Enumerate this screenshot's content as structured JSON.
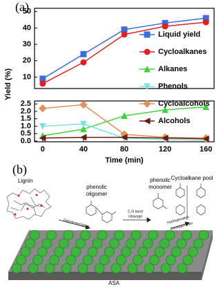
{
  "panel_label": "(a)",
  "chart_data": [
    {
      "type": "line",
      "y_label": "Yield (%)",
      "x": [
        0,
        40,
        80,
        120,
        160
      ],
      "xlim": [
        -8,
        168
      ],
      "ylim": [
        3,
        52
      ],
      "yticks": [
        10,
        20,
        30,
        40,
        50
      ],
      "legend": "right",
      "series": [
        {
          "name": "Liquid yield",
          "color": "#3a6fd8",
          "marker": "square",
          "values": [
            9,
            24,
            39,
            43,
            46
          ]
        },
        {
          "name": "Cycloalkanes",
          "color": "#e02020",
          "marker": "circle",
          "values": [
            6,
            19,
            36,
            41,
            43.5
          ]
        }
      ]
    },
    {
      "type": "line",
      "x_label": "Time (min)",
      "x": [
        0,
        40,
        80,
        120,
        160
      ],
      "xlim": [
        -8,
        168
      ],
      "xticks": [
        0,
        40,
        80,
        120,
        160
      ],
      "ylim": [
        -0.05,
        2.7
      ],
      "yticks": [
        {
          "value": 0,
          "label": "0.0"
        },
        0.5,
        {
          "value": 1,
          "label": "1.0"
        },
        1.5,
        {
          "value": 2,
          "label": "2.0"
        },
        2.5
      ],
      "legend": "right",
      "series": [
        {
          "name": "Alkanes",
          "color": "#40d040",
          "marker": "triangle-up",
          "values": [
            0.35,
            0.8,
            1.7,
            2.1,
            2.3
          ]
        },
        {
          "name": "Phenols",
          "color": "#7fe0e0",
          "marker": "triangle-down",
          "values": [
            1.0,
            1.15,
            0.2,
            0.1,
            0.05
          ]
        },
        {
          "name": "Cycloalcohols",
          "color": "#e0905a",
          "marker": "diamond",
          "values": [
            2.2,
            2.45,
            0.45,
            0.25,
            0.2
          ]
        },
        {
          "name": "Alcohols",
          "color": "#6b1a10",
          "marker": "triangle-left",
          "values": [
            0.2,
            0.25,
            0.25,
            0.2,
            0.15
          ]
        }
      ]
    }
  ],
  "diagram": {
    "panel_label": "(b)",
    "lignin": "Lignin",
    "oligomer": [
      "phenolic",
      "oligomer"
    ],
    "monomer": [
      "phenolic",
      "monomer"
    ],
    "pool": "Cycloalkane pool",
    "step1": "Depolymerization",
    "step2": [
      "C-O bond",
      "cleavage"
    ],
    "step3": [
      "Hydrogenation",
      "Deoxygenation"
    ],
    "support": "ASA"
  }
}
